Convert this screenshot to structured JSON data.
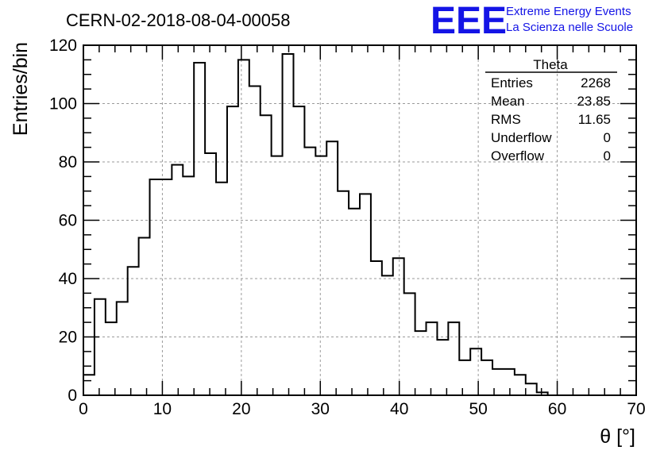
{
  "header": {
    "run_title": "CERN-02-2018-08-04-00058",
    "logo": {
      "text": "EEE",
      "line1": "Extreme Energy Events",
      "line2": "La Scienza nelle Scuole",
      "color": "#1414e6"
    }
  },
  "stats": {
    "title": "Theta",
    "rows": [
      {
        "label": "Entries",
        "value": "2268"
      },
      {
        "label": "Mean",
        "value": "23.85"
      },
      {
        "label": "RMS",
        "value": "11.65"
      },
      {
        "label": "Underflow",
        "value": "0"
      },
      {
        "label": "Overflow",
        "value": "0"
      }
    ]
  },
  "chart_data": {
    "type": "histogram",
    "title": "CERN-02-2018-08-04-00058",
    "xlabel": "θ [°]",
    "ylabel": "Entries/bin",
    "xlim": [
      0,
      70
    ],
    "ylim": [
      0,
      120
    ],
    "grid": true,
    "line_color": "#000000",
    "bin_width": 1.4,
    "x_ticks": [
      0,
      10,
      20,
      30,
      40,
      50,
      60,
      70
    ],
    "y_ticks": [
      0,
      20,
      40,
      60,
      80,
      100,
      120
    ],
    "values": [
      7,
      33,
      25,
      32,
      44,
      54,
      74,
      74,
      79,
      75,
      114,
      83,
      73,
      99,
      115,
      106,
      96,
      82,
      117,
      99,
      85,
      82,
      87,
      70,
      64,
      69,
      46,
      41,
      47,
      35,
      22,
      25,
      19,
      25,
      12,
      16,
      12,
      9,
      9,
      7,
      4,
      1,
      0,
      0,
      0,
      0,
      0,
      0,
      0,
      0
    ]
  }
}
